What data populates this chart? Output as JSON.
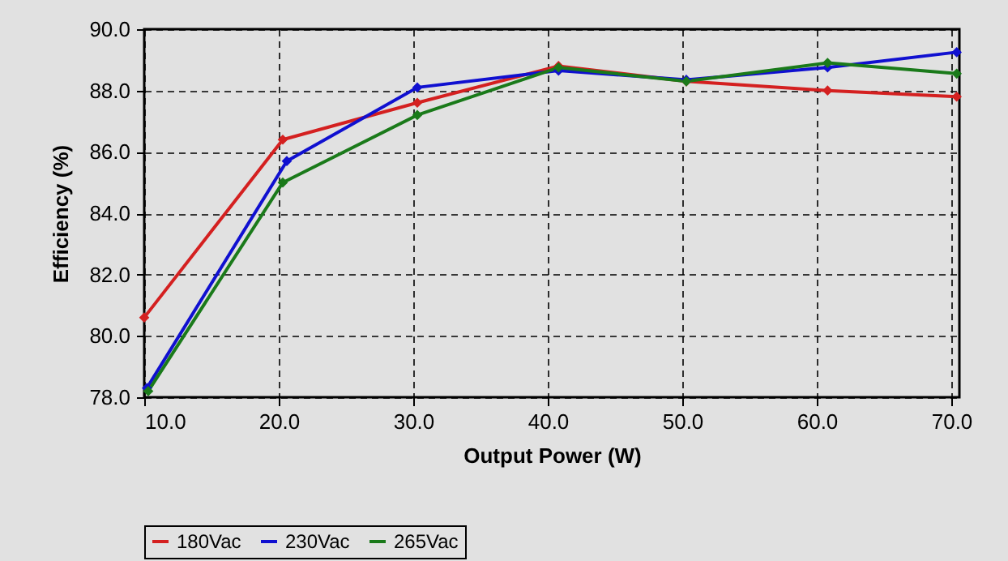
{
  "chart_data": {
    "type": "line",
    "xlabel": "Output Power (W)",
    "ylabel": "Efficiency (%)",
    "xlim": [
      10,
      70.6
    ],
    "xticks": [
      {
        "value": 10,
        "label": "10.0"
      },
      {
        "value": 20,
        "label": "20.0"
      },
      {
        "value": 30,
        "label": "30.0"
      },
      {
        "value": 40,
        "label": "40.0"
      },
      {
        "value": 50,
        "label": "50.0"
      },
      {
        "value": 60,
        "label": "60.0"
      },
      {
        "value": 70,
        "label": "70.0"
      }
    ],
    "ylim": [
      78,
      90
    ],
    "yticks": [
      {
        "value": 78,
        "label": "78.0"
      },
      {
        "value": 80,
        "label": "80.0"
      },
      {
        "value": 82,
        "label": "82.0"
      },
      {
        "value": 84,
        "label": "84.0"
      },
      {
        "value": 86,
        "label": "86.0"
      },
      {
        "value": 88,
        "label": "88.0"
      },
      {
        "value": 90,
        "label": "90.0"
      }
    ],
    "grid": true,
    "legend": "bottom",
    "marker": "diamond",
    "line_style": "solid",
    "series": [
      {
        "name": "180Vac",
        "color": "#d42020",
        "x": [
          10.0,
          20.3,
          30.3,
          40.8,
          50.3,
          60.8,
          70.4
        ],
        "values": [
          80.6,
          86.4,
          87.6,
          88.8,
          88.3,
          88.0,
          87.8
        ]
      },
      {
        "name": "230Vac",
        "color": "#1010d0",
        "x": [
          10.2,
          20.6,
          30.3,
          40.8,
          50.3,
          60.8,
          70.4
        ],
        "values": [
          78.3,
          85.7,
          88.1,
          88.65,
          88.35,
          88.75,
          89.25
        ]
      },
      {
        "name": "265Vac",
        "color": "#1a7a1a",
        "x": [
          10.3,
          20.3,
          30.3,
          40.8,
          50.3,
          60.8,
          70.4
        ],
        "values": [
          78.2,
          85.0,
          87.2,
          88.75,
          88.3,
          88.9,
          88.55
        ]
      }
    ]
  }
}
